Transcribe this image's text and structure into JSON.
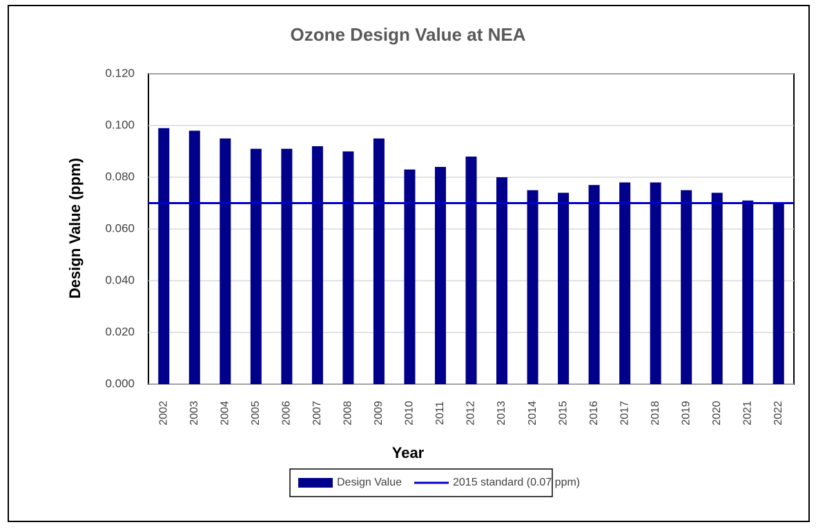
{
  "chart_data": {
    "type": "bar",
    "title": "Ozone Design Value at NEA",
    "x_label": "Year",
    "y_label": "Design Value (ppm)",
    "categories": [
      "2002",
      "2003",
      "2004",
      "2005",
      "2006",
      "2007",
      "2008",
      "2009",
      "2010",
      "2011",
      "2012",
      "2013",
      "2014",
      "2015",
      "2016",
      "2017",
      "2018",
      "2019",
      "2020",
      "2021",
      "2022"
    ],
    "series": [
      {
        "name": "Design Value",
        "color": "#00008b",
        "values": [
          0.099,
          0.098,
          0.095,
          0.091,
          0.091,
          0.092,
          0.09,
          0.095,
          0.083,
          0.084,
          0.088,
          0.08,
          0.075,
          0.074,
          0.077,
          0.078,
          0.078,
          0.075,
          0.074,
          0.071,
          0.07
        ]
      }
    ],
    "reference_line": {
      "name": "2015 standard (0.07 ppm)",
      "value": 0.07,
      "color": "#0000cd"
    },
    "ylim": [
      0,
      0.12
    ],
    "yticks": [
      {
        "value": 0,
        "label": "0.000"
      },
      {
        "value": 0.02,
        "label": "0.020"
      },
      {
        "value": 0.04,
        "label": "0.040"
      },
      {
        "value": 0.06,
        "label": "0.060"
      },
      {
        "value": 0.08,
        "label": "0.080"
      },
      {
        "value": 0.1,
        "label": "0.100"
      },
      {
        "value": 0.12,
        "label": "0.120"
      }
    ],
    "grid": true
  }
}
